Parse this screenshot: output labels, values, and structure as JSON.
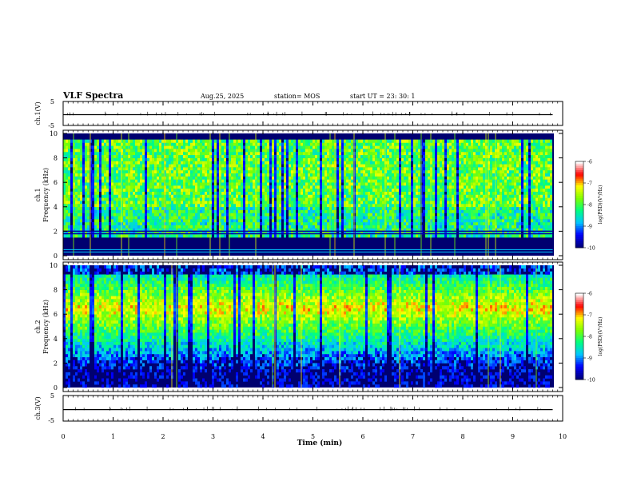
{
  "header": {
    "title": "VLF Spectra",
    "date": "Aug.25, 2025",
    "station": "station= MOS",
    "start": "start  UT  =    23: 30: 1"
  },
  "colors": {
    "background": "#000080",
    "colormap": [
      "#000080",
      "#0000ff",
      "#00c8ff",
      "#00ff80",
      "#80ff00",
      "#ffff00",
      "#ff0000",
      "#ffffff"
    ]
  },
  "chart_data": [
    {
      "type": "line",
      "name": "ch1-voltage",
      "ylabel": "ch.1(V)",
      "ylim": [
        -5,
        5
      ],
      "yticks": [
        "5",
        "-5"
      ],
      "level": -0.5
    },
    {
      "type": "heatmap",
      "name": "ch1-spectrogram",
      "ylabel": [
        "ch.1",
        "Frequency  (kHz)"
      ],
      "ylim": [
        0,
        10
      ],
      "yticks": [
        "0",
        "2",
        "4",
        "6",
        "8",
        "10"
      ],
      "colorbar": {
        "label": "log(PSD)(V²/Hz)",
        "ticks": [
          "-6",
          "-7",
          "-8",
          "-9",
          "-10"
        ],
        "range": [
          -10,
          -6
        ]
      },
      "band_khz": [
        1.5,
        9.5
      ],
      "dark_lines_khz": [
        2.0,
        1.8
      ]
    },
    {
      "type": "heatmap",
      "name": "ch2-spectrogram",
      "ylabel": [
        "ch.2",
        "Frequency  (kHz)"
      ],
      "ylim": [
        0,
        10
      ],
      "yticks": [
        "0",
        "2",
        "4",
        "6",
        "8",
        "10"
      ],
      "colorbar": {
        "label": "log(PSD)(V²/Hz)",
        "ticks": [
          "-6",
          "-7",
          "-8",
          "-9",
          "-10"
        ],
        "range": [
          -10,
          -6
        ]
      },
      "band_khz": [
        2,
        9
      ],
      "peak_khz": 6.5
    },
    {
      "type": "line",
      "name": "ch3-voltage",
      "ylabel": "ch.3(V)",
      "ylim": [
        -5,
        5
      ],
      "yticks": [
        "5",
        "-5"
      ],
      "level": -0.5
    }
  ],
  "xaxis": {
    "label": "Time  (min)",
    "ticks": [
      "0",
      "1",
      "2",
      "3",
      "4",
      "5",
      "6",
      "7",
      "8",
      "9",
      "10"
    ],
    "range": [
      0,
      10
    ],
    "data_end": 9.8
  }
}
